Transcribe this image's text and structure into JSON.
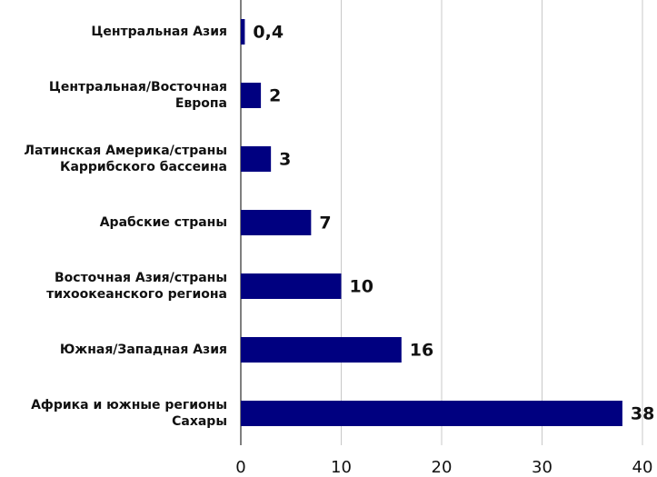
{
  "chart_data": {
    "type": "bar",
    "orientation": "horizontal",
    "categories": [
      "Центральная Азия",
      "Центральная/Восточная Европа",
      "Латинская Америка/страны Каррибского бассеина",
      "Арабские страны",
      "Восточная Азия/страны тихоокеанского региона",
      "Южная/Западная Азия",
      "Африка и южные регионы Сахары"
    ],
    "values": [
      0.4,
      2,
      3,
      7,
      10,
      16,
      38
    ],
    "value_labels": [
      "0,4",
      "2",
      "3",
      "7",
      "10",
      "16",
      "38"
    ],
    "color": "#000080",
    "xlim": [
      0,
      40
    ],
    "xticks": [
      0,
      10,
      20,
      30,
      40
    ],
    "grid": true
  }
}
